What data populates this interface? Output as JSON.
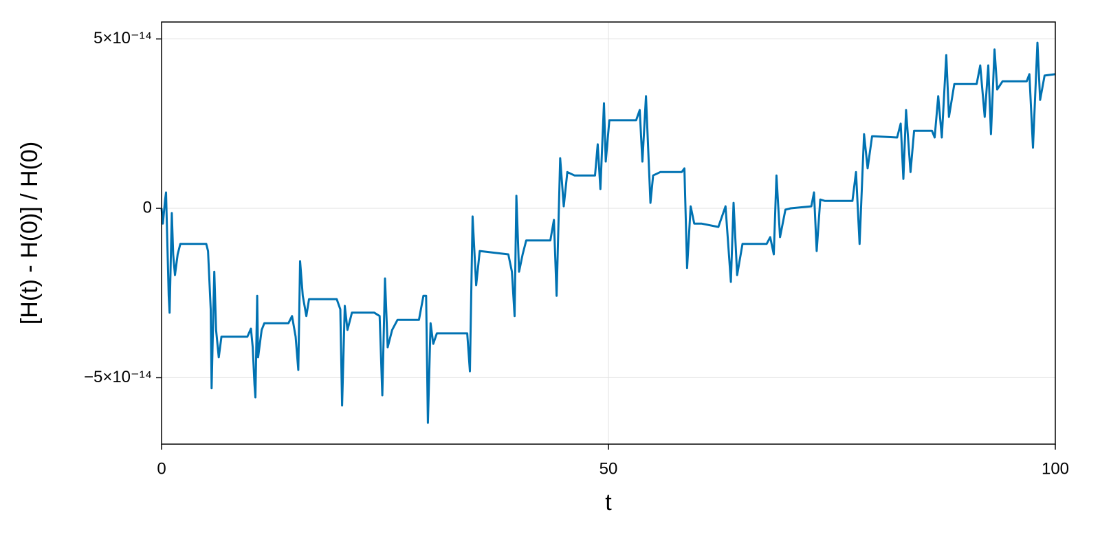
{
  "chart_data": {
    "type": "line",
    "xlabel": "t",
    "ylabel": "[H(t) - H(0)] / H(0)",
    "xlim": [
      0,
      100
    ],
    "ylim": [
      -6.96e-14,
      5.5e-14
    ],
    "xticks": [
      0,
      50,
      100
    ],
    "yticks": [
      {
        "value": -5e-14,
        "label": "−5×10⁻¹⁴"
      },
      0,
      {
        "value": 5e-14,
        "label": "5×10⁻¹⁴"
      }
    ],
    "grid": true,
    "series": [
      {
        "color": "#0072b2",
        "x": [
          0,
          0.15,
          0.4,
          0.5,
          0.8,
          0.9,
          1.15,
          1.3,
          1.5,
          1.8,
          2.1,
          5,
          5.2,
          5.5,
          5.6,
          5.8,
          5.9,
          6.1,
          6.4,
          6.7,
          7.3,
          9.6,
          10,
          10.2,
          10.4,
          10.5,
          10.7,
          10.8,
          11.2,
          11.5,
          14.2,
          14.6,
          15,
          15.3,
          15.5,
          15.8,
          16.2,
          16.5,
          19.6,
          20,
          20.2,
          20.5,
          20.8,
          21.3,
          23.8,
          24.4,
          24.7,
          25,
          25.3,
          25.8,
          26.4,
          28.8,
          29.3,
          29.6,
          29.8,
          30.1,
          30.4,
          30.8,
          34.2,
          34.5,
          34.8,
          35.2,
          35.6,
          38.8,
          39.2,
          39.5,
          39.7,
          40,
          40.4,
          40.8,
          43.5,
          43.9,
          44.2,
          44.6,
          45,
          45.4,
          46.2,
          48.5,
          48.8,
          49.1,
          49.5,
          49.7,
          50.1,
          53.1,
          53.5,
          53.8,
          54.2,
          54.7,
          55,
          55.8,
          58.2,
          58.5,
          58.8,
          59.2,
          59.6,
          60.4,
          62.3,
          63.1,
          63.7,
          64,
          64.4,
          65,
          65.8,
          67.7,
          68.1,
          68.5,
          68.8,
          69.2,
          69.8,
          70.4,
          72.7,
          73,
          73.3,
          73.7,
          74.2,
          77.3,
          77.7,
          78.1,
          78.6,
          79,
          79.5,
          82.3,
          82.7,
          83,
          83.3,
          83.8,
          84.2,
          86.2,
          86.5,
          86.9,
          87.3,
          87.8,
          88.1,
          88.7,
          91.2,
          91.6,
          92.1,
          92.5,
          92.8,
          93.2,
          93.5,
          94.1,
          96.8,
          97.1,
          97.5,
          98,
          98.3,
          98.8,
          100
        ],
        "values": [
          0,
          -4.5e-15,
          2.6e-15,
          4.7e-15,
          -2.58e-14,
          -3.08e-14,
          -1.4e-15,
          -1.36e-14,
          -1.97e-14,
          -1.36e-14,
          -1.05e-14,
          -1.05e-14,
          -1.26e-14,
          -2.98e-14,
          -5.31e-14,
          -2.98e-14,
          -1.87e-14,
          -3.59e-14,
          -4.4e-14,
          -3.79e-14,
          -3.79e-14,
          -3.79e-14,
          -3.55e-14,
          -4.1e-14,
          -5.21e-14,
          -5.58e-14,
          -2.58e-14,
          -4.4e-14,
          -3.59e-14,
          -3.39e-14,
          -3.39e-14,
          -3.18e-14,
          -3.79e-14,
          -4.77e-14,
          -1.56e-14,
          -2.58e-14,
          -3.18e-14,
          -2.68e-14,
          -2.68e-14,
          -2.98e-14,
          -5.82e-14,
          -2.88e-14,
          -3.59e-14,
          -3.08e-14,
          -3.08e-14,
          -3.18e-14,
          -5.52e-14,
          -2.07e-14,
          -4.1e-14,
          -3.59e-14,
          -3.29e-14,
          -3.29e-14,
          -2.58e-14,
          -2.58e-14,
          -6.33e-14,
          -3.39e-14,
          -4e-14,
          -3.69e-14,
          -3.69e-14,
          -4.81e-14,
          -2.4e-15,
          -2.27e-14,
          -1.26e-14,
          -1.36e-14,
          -1.87e-14,
          -3.18e-14,
          3.7e-15,
          -1.87e-14,
          -1.36e-14,
          -9.5e-15,
          -9.5e-15,
          -3.4e-15,
          -2.58e-14,
          1.48e-14,
          6e-16,
          1.07e-14,
          9.7e-15,
          9.7e-15,
          1.89e-14,
          5.7e-15,
          3.1e-14,
          1.38e-14,
          2.6e-14,
          2.6e-14,
          2.9e-14,
          1.38e-14,
          3.31e-14,
          1.6e-15,
          9.7e-15,
          1.07e-14,
          1.07e-14,
          1.18e-14,
          -1.76e-14,
          6e-16,
          -4.5e-15,
          -4.5e-15,
          -5.5e-15,
          6e-16,
          -2.17e-14,
          1.6e-15,
          -1.97e-14,
          -1.05e-14,
          -1.05e-14,
          -1.05e-14,
          -8.5e-15,
          -1.36e-14,
          9.7e-15,
          -8.5e-15,
          -4e-16,
          0,
          6e-16,
          4.7e-15,
          -1.26e-14,
          2.6e-15,
          2.2e-15,
          2.2e-15,
          1.07e-14,
          -1.05e-14,
          2.19e-14,
          1.18e-14,
          2.13e-14,
          2.09e-14,
          2.5e-14,
          8.7e-15,
          2.9e-14,
          1.07e-14,
          2.29e-14,
          2.29e-14,
          2.09e-14,
          3.31e-14,
          2.09e-14,
          4.52e-14,
          2.7e-14,
          3.67e-14,
          3.67e-14,
          4.22e-14,
          2.7e-14,
          4.22e-14,
          2.19e-14,
          4.69e-14,
          3.51e-14,
          3.75e-14,
          3.75e-14,
          3.96e-14,
          1.79e-14,
          4.89e-14,
          3.2e-14,
          3.92e-14,
          3.96e-14
        ]
      }
    ]
  }
}
